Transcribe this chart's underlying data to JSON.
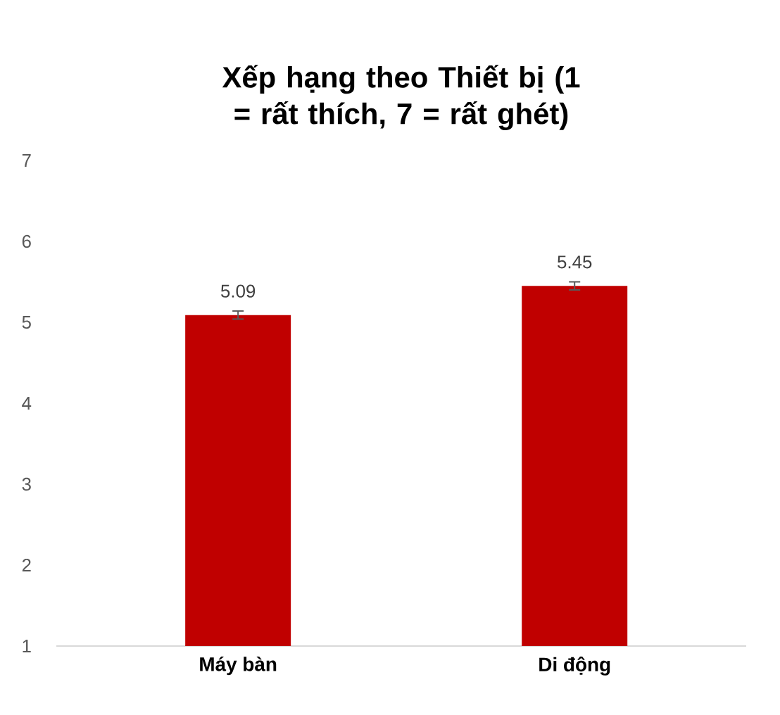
{
  "chart_data": {
    "type": "bar",
    "title": "Xếp hạng theo Thiết bị (1 = rất thích, 7 = rất ghét)",
    "categories": [
      "Máy bàn",
      "Di động"
    ],
    "values": [
      5.09,
      5.45
    ],
    "errors": [
      0.05,
      0.05
    ],
    "color": "#c00000",
    "ylim": [
      1,
      7
    ],
    "yticks": [
      1,
      2,
      3,
      4,
      5,
      6,
      7
    ],
    "data_labels": true
  }
}
